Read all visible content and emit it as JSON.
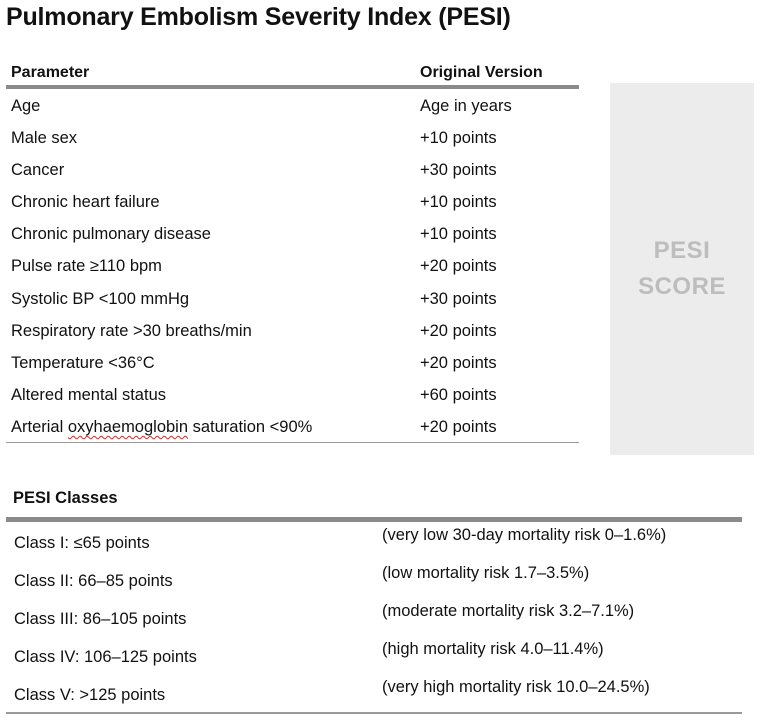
{
  "title": "Pulmonary Embolism Severity Index (PESI)",
  "parameters_table": {
    "headers": {
      "parameter": "Parameter",
      "version": "Original Version"
    },
    "rows": [
      {
        "parameter": "Age",
        "value": "Age in years"
      },
      {
        "parameter": "Male sex",
        "value": "+10 points"
      },
      {
        "parameter": "Cancer",
        "value": "+30 points"
      },
      {
        "parameter": "Chronic heart failure",
        "value": "+10 points"
      },
      {
        "parameter": "Chronic pulmonary disease",
        "value": "+10 points"
      },
      {
        "parameter": "Pulse rate ≥110 bpm",
        "value": "+20 points"
      },
      {
        "parameter": "Systolic BP <100 mmHg",
        "value": "+30 points"
      },
      {
        "parameter": "Respiratory rate >30 breaths/min",
        "value": "+20 points"
      },
      {
        "parameter": "Temperature <36°C",
        "value": "+20 points"
      },
      {
        "parameter": "Altered mental status",
        "value": "+60 points"
      },
      {
        "parameter_prefix": "Arterial ",
        "parameter_misspelled": "oxyhaemoglobin",
        "parameter_suffix": " saturation <90%",
        "value": "+20 points"
      }
    ]
  },
  "score_box": {
    "line1": "PESI",
    "line2": "SCORE"
  },
  "classes_table": {
    "title": "PESI Classes",
    "rows": [
      {
        "class": "Class I: ≤65 points",
        "risk": "(very low 30-day mortality risk 0–1.6%)"
      },
      {
        "class": "Class II: 66–85 points",
        "risk": "(low mortality risk 1.7–3.5%)"
      },
      {
        "class": "Class III: 86–105 points",
        "risk": "(moderate mortality risk 3.2–7.1%)"
      },
      {
        "class": "Class IV: 106–125 points",
        "risk": "(high mortality risk 4.0–11.4%)"
      },
      {
        "class": "Class V: >125 points",
        "risk": "(very high mortality risk 10.0–24.5%)"
      }
    ]
  }
}
